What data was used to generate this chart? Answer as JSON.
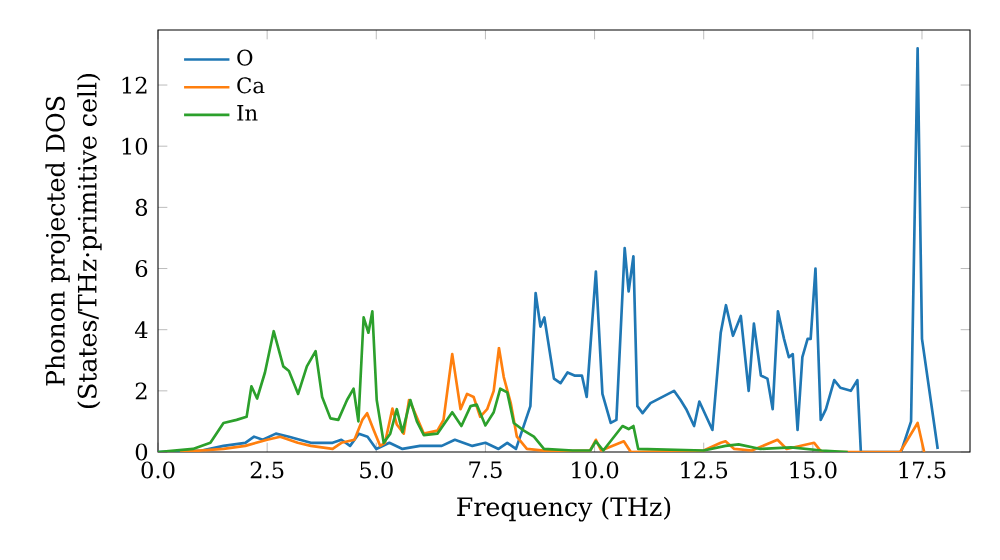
{
  "chart_data": {
    "type": "line",
    "xlabel": "Frequency (THz)",
    "ylabel": "Phonon projected DOS\n(States/THz·primitive cell)",
    "xlim": [
      0,
      18.6
    ],
    "ylim": [
      0,
      13.8
    ],
    "xticks": [
      {
        "value": 0,
        "label": "0.0"
      },
      {
        "value": 2.5,
        "label": "2.5"
      },
      {
        "value": 5,
        "label": "5.0"
      },
      {
        "value": 7.5,
        "label": "7.5"
      },
      {
        "value": 10,
        "label": "10.0"
      },
      {
        "value": 12.5,
        "label": "12.5"
      },
      {
        "value": 15,
        "label": "15.0"
      },
      {
        "value": 17.5,
        "label": "17.5"
      }
    ],
    "yticks": [
      0,
      2,
      4,
      6,
      8,
      10,
      12
    ],
    "grid": false,
    "legend": "top left",
    "marker": "none",
    "line_style": "solid",
    "series": [
      {
        "name": "O",
        "color": "#1f77b4",
        "x": [
          0,
          1,
          1.5,
          2,
          2.2,
          2.4,
          2.7,
          3,
          3.5,
          4,
          4.2,
          4.4,
          4.6,
          4.8,
          5.0,
          5.3,
          5.6,
          6,
          6.5,
          6.8,
          7.2,
          7.5,
          7.8,
          8,
          8.2,
          8.53,
          8.65,
          8.76,
          8.85,
          9.07,
          9.22,
          9.38,
          9.54,
          9.71,
          9.82,
          10.03,
          10.18,
          10.37,
          10.5,
          10.69,
          10.78,
          10.89,
          10.98,
          11.1,
          11.28,
          11.82,
          11.97,
          12.1,
          12.28,
          12.4,
          12.7,
          12.89,
          13.01,
          13.17,
          13.35,
          13.53,
          13.65,
          13.81,
          13.96,
          14.08,
          14.2,
          14.34,
          14.45,
          14.54,
          14.65,
          14.76,
          14.88,
          14.95,
          15.06,
          15.18,
          15.3,
          15.49,
          15.63,
          15.87,
          16.02,
          16.1,
          17.02,
          17.25,
          17.4,
          17.5,
          17.86
        ],
        "values": [
          0,
          0.05,
          0.2,
          0.3,
          0.5,
          0.4,
          0.6,
          0.5,
          0.3,
          0.3,
          0.4,
          0.2,
          0.6,
          0.5,
          0.1,
          0.3,
          0.1,
          0.2,
          0.2,
          0.4,
          0.2,
          0.3,
          0.1,
          0.3,
          0.1,
          1.5,
          5.2,
          4.1,
          4.4,
          2.4,
          2.25,
          2.6,
          2.5,
          2.5,
          1.8,
          5.9,
          1.9,
          0.95,
          1.05,
          6.67,
          5.25,
          6.4,
          1.5,
          1.27,
          1.6,
          2.0,
          1.7,
          1.4,
          0.85,
          1.65,
          0.72,
          3.9,
          4.8,
          3.8,
          4.45,
          2.0,
          4.2,
          2.5,
          2.4,
          1.4,
          4.6,
          3.7,
          3.1,
          3.2,
          0.72,
          3.1,
          3.7,
          3.7,
          6.0,
          1.05,
          1.4,
          2.35,
          2.1,
          2.0,
          2.35,
          0,
          0,
          1.0,
          13.2,
          3.7,
          0.1
        ]
      },
      {
        "name": "Ca",
        "color": "#ff7f0e",
        "x": [
          0.5,
          1.5,
          2,
          2.5,
          2.8,
          3.2,
          3.5,
          4,
          4.2,
          4.5,
          4.68,
          4.79,
          4.94,
          5.09,
          5.2,
          5.37,
          5.47,
          5.63,
          5.75,
          5.85,
          6.09,
          6.4,
          6.54,
          6.74,
          6.93,
          7.08,
          7.23,
          7.38,
          7.54,
          7.69,
          7.81,
          7.92,
          8.08,
          8.22,
          8.45,
          9,
          9.9,
          10.03,
          10.15,
          10.67,
          10.83,
          12.5,
          12.89,
          13.0,
          13.2,
          13.6,
          14.19,
          14.4,
          15.03,
          15.2,
          17.0,
          17.4,
          17.55
        ],
        "values": [
          0,
          0.1,
          0.2,
          0.4,
          0.5,
          0.3,
          0.2,
          0.1,
          0.3,
          0.4,
          1.05,
          1.27,
          0.72,
          0.2,
          0.3,
          1.42,
          0.9,
          0.6,
          1.7,
          1.4,
          0.6,
          0.7,
          1.05,
          3.2,
          1.4,
          1.9,
          1.8,
          1.15,
          1.4,
          2.0,
          3.4,
          2.45,
          1.6,
          0.5,
          0.1,
          0.02,
          0.05,
          0.4,
          0.05,
          0.35,
          0,
          0.05,
          0.3,
          0.35,
          0.1,
          0.05,
          0.4,
          0.1,
          0.3,
          0,
          0,
          0.95,
          0
        ]
      },
      {
        "name": "In",
        "color": "#2ca02c",
        "x": [
          0,
          0.8,
          1.2,
          1.5,
          1.8,
          2.03,
          2.14,
          2.27,
          2.45,
          2.65,
          2.87,
          3.0,
          3.21,
          3.41,
          3.61,
          3.76,
          3.95,
          4.13,
          4.33,
          4.48,
          4.59,
          4.71,
          4.82,
          4.91,
          5.01,
          5.17,
          5.32,
          5.47,
          5.6,
          5.78,
          5.93,
          6.09,
          6.4,
          6.74,
          6.95,
          7.16,
          7.3,
          7.5,
          7.69,
          7.84,
          8.0,
          8.15,
          8.38,
          8.61,
          8.84,
          9.5,
          9.9,
          10.03,
          10.2,
          10.64,
          10.78,
          10.89,
          11.0,
          12.5,
          13.0,
          13.3,
          13.8,
          14.5,
          15.2,
          15.8
        ],
        "values": [
          0,
          0.1,
          0.3,
          0.95,
          1.05,
          1.15,
          2.15,
          1.75,
          2.6,
          3.95,
          2.8,
          2.65,
          1.9,
          2.8,
          3.3,
          1.8,
          1.1,
          1.05,
          1.7,
          2.07,
          1.0,
          4.4,
          3.9,
          4.6,
          1.7,
          0.3,
          0.6,
          1.4,
          0.65,
          1.7,
          1.0,
          0.55,
          0.6,
          1.3,
          0.85,
          1.5,
          1.55,
          0.87,
          1.3,
          2.07,
          1.95,
          0.95,
          0.7,
          0.5,
          0.1,
          0.05,
          0.05,
          0.35,
          0.05,
          0.85,
          0.75,
          0.85,
          0.1,
          0.05,
          0.2,
          0.25,
          0.1,
          0.15,
          0.05,
          0
        ]
      }
    ]
  }
}
